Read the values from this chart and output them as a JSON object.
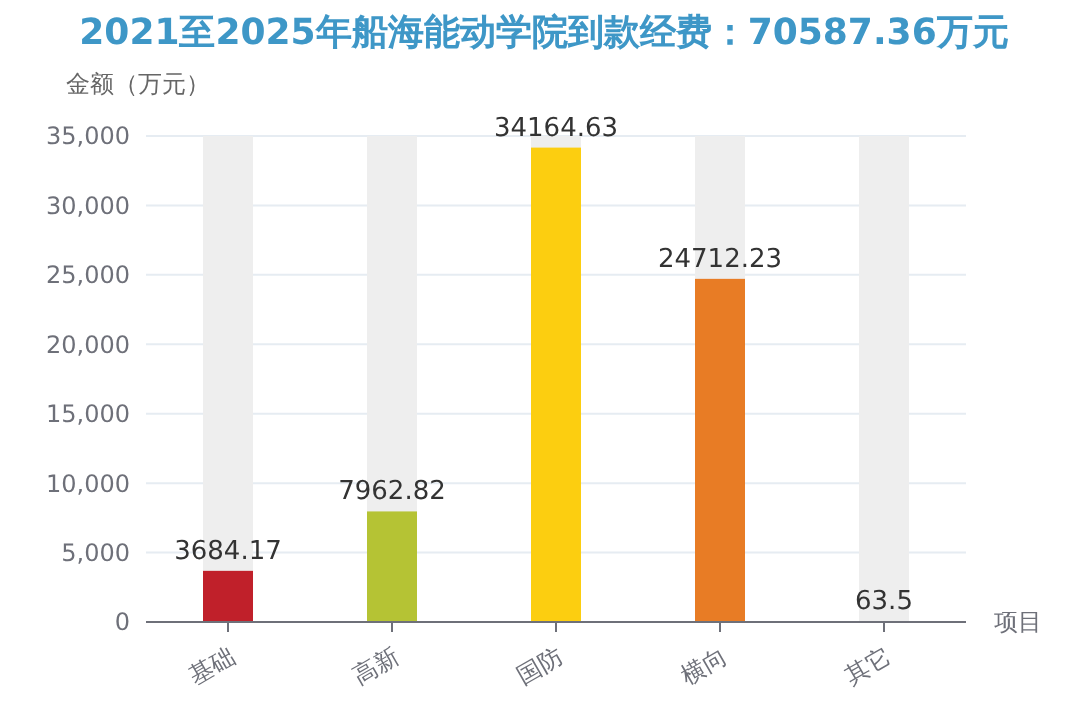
{
  "chart_data": {
    "type": "bar",
    "title": "2021至2025年船海能动学院到款经费：70587.36万元",
    "ylabel": "金额（万元）",
    "xlabel": "项目",
    "categories": [
      "基础",
      "高新",
      "国防",
      "横向",
      "其它"
    ],
    "values": [
      3684.17,
      7962.82,
      34164.63,
      24712.23,
      63.5
    ],
    "colors": [
      "#c0202a",
      "#b5c334",
      "#fcce10",
      "#e87c25",
      "#5fb3b3"
    ],
    "ylim": [
      0,
      35000
    ],
    "yticks": [
      0,
      {
        "value": 5000,
        "label": "5,000"
      },
      {
        "value": 10000,
        "label": "10,000"
      },
      {
        "value": 15000,
        "label": "15,000"
      },
      {
        "value": 20000,
        "label": "20,000"
      },
      {
        "value": 25000,
        "label": "25,000"
      },
      {
        "value": 30000,
        "label": "30,000"
      },
      {
        "value": 35000,
        "label": "35,000"
      }
    ],
    "grid": "y",
    "data_labels": true
  }
}
